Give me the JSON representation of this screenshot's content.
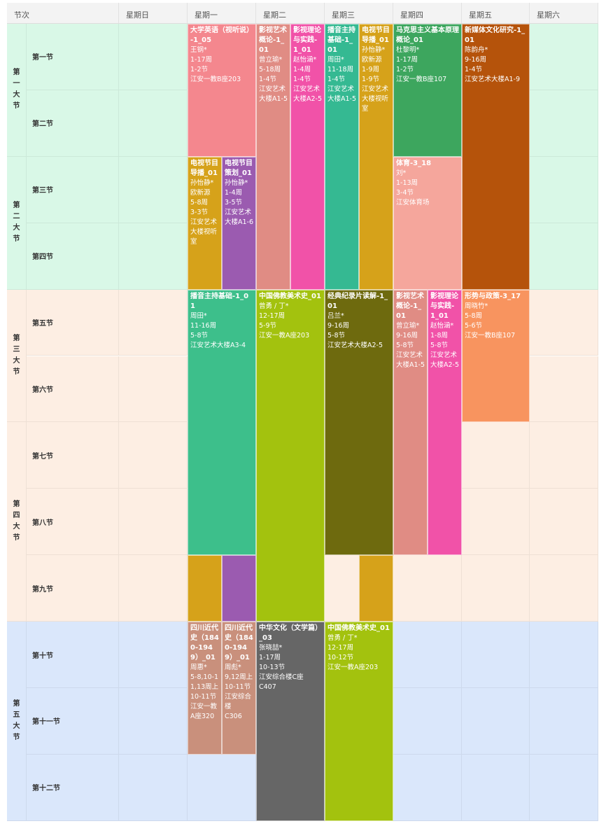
{
  "header": [
    "节次",
    "星期日",
    "星期一",
    "星期二",
    "星期三",
    "星期四",
    "星期五",
    "星期六"
  ],
  "sections": [
    {
      "label": "第一大节",
      "periods": [
        "第一节",
        "第二节"
      ]
    },
    {
      "label": "第二大节",
      "periods": [
        "第三节",
        "第四节"
      ]
    },
    {
      "label": "第三大节",
      "periods": [
        "第五节",
        "第六节"
      ]
    },
    {
      "label": "第四大节",
      "periods": [
        "第七节",
        "第八节",
        "第九节"
      ]
    },
    {
      "label": "第五大节",
      "periods": [
        "第十节",
        "第十一节",
        "第十二节"
      ]
    }
  ],
  "courses": [
    {
      "title": "大学英语（视听说）-1_05",
      "lines": [
        "王钢*",
        "1-17周",
        "1-2节",
        "江安一教B座203"
      ]
    },
    {
      "title": "电视节目导播_01",
      "lines": [
        "孙怡静*",
        "欧新源",
        "5-8周",
        "3-3节",
        "江安艺术大楼视听室"
      ]
    },
    {
      "title": "电视节目策划_01",
      "lines": [
        "孙怡静*",
        "1-4周",
        "3-5节",
        "江安艺术大楼A1-6"
      ]
    },
    {
      "title": "播音主持基础-1_01",
      "lines": [
        "周田*",
        "11-16周",
        "5-8节",
        "江安艺术大楼A3-4"
      ]
    },
    {
      "title": "四川近代史（1840-1949）_01",
      "lines": [
        "周惠*",
        "5-8,10-11,13周上",
        "10-11节",
        "江安一教A座320"
      ]
    },
    {
      "title": "四川近代史（1840-1949）_01",
      "lines": [
        "周彪*",
        "9,12周上",
        "10-11节",
        "江安综合楼",
        "C306"
      ]
    },
    {
      "title": "影视艺术概论-1_01",
      "lines": [
        "曾立瑜*",
        "5-18周",
        "1-4节",
        "江安艺术大楼A1-5"
      ]
    },
    {
      "title": "影视理论与实践-1_01",
      "lines": [
        "赵怡涵*",
        "1-4周",
        "1-4节",
        "江安艺术大楼A2-5"
      ]
    },
    {
      "title": "中国佛教美术史_01",
      "lines": [
        "曾勇 / 丁*",
        "12-17周",
        "5-9节",
        "江安一教A座203"
      ]
    },
    {
      "title": "中华文化（文学篇）_03",
      "lines": [
        "张晓喆*",
        "1-17周",
        "10-13节",
        "江安综合楼C座",
        "C407"
      ]
    },
    {
      "title": "播音主持基础-1_01",
      "lines": [
        "周田*",
        "11-18周",
        "1-4节",
        "江安艺术大楼A1-5"
      ]
    },
    {
      "title": "电视节目导播_01",
      "lines": [
        "孙怡静*",
        "欧新源",
        "1-9周",
        "1-9节",
        "江安艺术大楼视听室"
      ]
    },
    {
      "title": "经典纪录片读解-1_01",
      "lines": [
        "吕兰*",
        "9-16周",
        "5-8节",
        "江安艺术大楼A2-5"
      ]
    },
    {
      "title": "中国佛教美术史_01",
      "lines": [
        "曾勇 / 丁*",
        "12-17周",
        "10-12节",
        "江安一教A座203"
      ]
    },
    {
      "title": "马克思主义基本原理概论_01",
      "lines": [
        "杜黎明*",
        "1-17周",
        "1-2节",
        "江安一教B座107"
      ]
    },
    {
      "title": "体育-3_18",
      "lines": [
        "刘*",
        "1-13周",
        "3-4节",
        "江安体育场"
      ]
    },
    {
      "title": "影视艺术概论-1_01",
      "lines": [
        "曾立瑜*",
        "9-16周",
        "5-8节",
        "江安艺术大楼A1-5"
      ]
    },
    {
      "title": "影视理论与实践-1_01",
      "lines": [
        "赵怡涵*",
        "1-8周",
        "5-8节",
        "江安艺术大楼A2-5"
      ]
    },
    {
      "title": "新媒体文化研究-1_01",
      "lines": [
        "陈韵舟*",
        "9-16周",
        "1-4节",
        "江安艺术大楼A1-9"
      ]
    },
    {
      "title": "形势与政策-3_17",
      "lines": [
        "周晓竹*",
        "5-8周",
        "5-6节",
        "江安一教B座107"
      ]
    }
  ]
}
